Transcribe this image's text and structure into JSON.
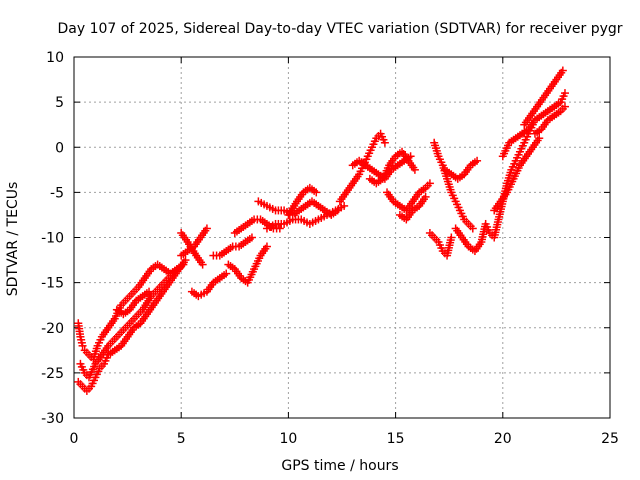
{
  "chart_data": {
    "type": "scatter",
    "title": "Day 107 of 2025, Sidereal Day-to-day VTEC variation (SDTVAR) for receiver pygr",
    "xlabel": "GPS time / hours",
    "ylabel": "SDTVAR / TECUs",
    "xlim": [
      0,
      25
    ],
    "ylim": [
      -30,
      10
    ],
    "xticks": [
      0,
      5,
      10,
      15,
      20,
      25
    ],
    "yticks": [
      -30,
      -25,
      -20,
      -15,
      -10,
      -5,
      0,
      5,
      10
    ],
    "xtick_labels": [
      "0",
      "5",
      "10",
      "15",
      "20",
      "25"
    ],
    "ytick_labels": [
      "-30",
      "-25",
      "-20",
      "-15",
      "-10",
      "-5",
      "0",
      "5",
      "10"
    ],
    "grid": true,
    "marker": "+",
    "color": "#ff0000",
    "series": [
      {
        "points": [
          [
            0.2,
            -19.5
          ],
          [
            0.3,
            -21
          ],
          [
            0.4,
            -22
          ],
          [
            0.5,
            -22.5
          ],
          [
            0.7,
            -23
          ],
          [
            0.9,
            -23.5
          ],
          [
            1.1,
            -22
          ],
          [
            1.3,
            -21
          ],
          [
            1.6,
            -20
          ],
          [
            1.9,
            -19
          ],
          [
            2.2,
            -17.5
          ],
          [
            2.6,
            -16.5
          ],
          [
            3.0,
            -15.5
          ],
          [
            3.3,
            -14.5
          ],
          [
            3.6,
            -13.5
          ],
          [
            3.9,
            -13
          ],
          [
            4.2,
            -13.5
          ],
          [
            4.5,
            -14
          ],
          [
            4.8,
            -13.5
          ],
          [
            5.1,
            -13
          ],
          [
            0.2,
            -26
          ],
          [
            0.4,
            -26.5
          ],
          [
            0.6,
            -27
          ],
          [
            0.8,
            -26.5
          ],
          [
            1.0,
            -25.5
          ],
          [
            1.2,
            -24.5
          ],
          [
            1.4,
            -24
          ],
          [
            1.6,
            -23
          ],
          [
            1.9,
            -22.5
          ],
          [
            2.2,
            -22
          ],
          [
            2.5,
            -21
          ],
          [
            2.8,
            -20
          ],
          [
            3.1,
            -19.5
          ],
          [
            3.4,
            -18.5
          ],
          [
            3.7,
            -17.5
          ],
          [
            4.0,
            -16.5
          ],
          [
            4.3,
            -15.5
          ],
          [
            4.6,
            -14.5
          ],
          [
            4.9,
            -13.5
          ],
          [
            5.2,
            -12.5
          ],
          [
            0.3,
            -24
          ],
          [
            0.5,
            -25
          ],
          [
            0.7,
            -25.5
          ],
          [
            1.0,
            -24
          ],
          [
            1.3,
            -23
          ],
          [
            1.6,
            -22
          ],
          [
            2.0,
            -21
          ],
          [
            2.4,
            -20
          ],
          [
            2.8,
            -19
          ],
          [
            3.2,
            -18
          ],
          [
            3.6,
            -16.5
          ],
          [
            4.0,
            -15.5
          ],
          [
            4.4,
            -14.5
          ],
          [
            4.8,
            -13.5
          ],
          [
            2.0,
            -18
          ],
          [
            2.3,
            -18.5
          ],
          [
            2.6,
            -18
          ],
          [
            2.9,
            -17
          ],
          [
            3.2,
            -16.5
          ],
          [
            3.5,
            -16
          ],
          [
            5.0,
            -12
          ],
          [
            5.3,
            -11.5
          ],
          [
            5.6,
            -11
          ],
          [
            5.9,
            -10
          ],
          [
            6.2,
            -9
          ],
          [
            5.0,
            -9.5
          ],
          [
            5.3,
            -10.5
          ],
          [
            5.7,
            -12
          ],
          [
            6.0,
            -13
          ],
          [
            5.5,
            -16
          ],
          [
            5.8,
            -16.5
          ],
          [
            6.2,
            -16
          ],
          [
            6.5,
            -15
          ],
          [
            6.8,
            -14.5
          ],
          [
            7.1,
            -14
          ],
          [
            6.5,
            -12
          ],
          [
            6.8,
            -12
          ],
          [
            7.1,
            -11.5
          ],
          [
            7.4,
            -11
          ],
          [
            7.7,
            -11
          ],
          [
            8.0,
            -10.5
          ],
          [
            8.3,
            -10
          ],
          [
            7.2,
            -13
          ],
          [
            7.5,
            -13.5
          ],
          [
            7.8,
            -14.5
          ],
          [
            8.1,
            -15
          ],
          [
            8.4,
            -13.5
          ],
          [
            8.7,
            -12
          ],
          [
            9.0,
            -11
          ],
          [
            7.5,
            -9.5
          ],
          [
            7.8,
            -9
          ],
          [
            8.1,
            -8.5
          ],
          [
            8.4,
            -8
          ],
          [
            8.7,
            -8
          ],
          [
            9.0,
            -8.5
          ],
          [
            9.3,
            -9
          ],
          [
            9.6,
            -9
          ],
          [
            8.6,
            -6
          ],
          [
            9.0,
            -6.5
          ],
          [
            9.4,
            -7
          ],
          [
            9.8,
            -7
          ],
          [
            10.2,
            -7.5
          ],
          [
            10.5,
            -7
          ],
          [
            10.8,
            -6.5
          ],
          [
            11.1,
            -6
          ],
          [
            11.4,
            -6.5
          ],
          [
            11.7,
            -7
          ],
          [
            12.0,
            -7.5
          ],
          [
            12.3,
            -7
          ],
          [
            9.0,
            -9
          ],
          [
            9.4,
            -8.5
          ],
          [
            9.8,
            -8.5
          ],
          [
            10.2,
            -8
          ],
          [
            10.6,
            -8
          ],
          [
            11.0,
            -8.5
          ],
          [
            11.4,
            -8
          ],
          [
            11.8,
            -7.5
          ],
          [
            12.2,
            -7
          ],
          [
            12.6,
            -6.5
          ],
          [
            10.0,
            -7.5
          ],
          [
            10.4,
            -6
          ],
          [
            10.7,
            -5
          ],
          [
            11.0,
            -4.5
          ],
          [
            11.3,
            -5
          ],
          [
            12.4,
            -6
          ],
          [
            12.7,
            -5
          ],
          [
            13.0,
            -4
          ],
          [
            13.3,
            -3
          ],
          [
            13.5,
            -2
          ],
          [
            13.7,
            -1
          ],
          [
            13.9,
            0
          ],
          [
            14.1,
            1
          ],
          [
            14.3,
            1.5
          ],
          [
            14.5,
            0.5
          ],
          [
            13.0,
            -2
          ],
          [
            13.3,
            -1.5
          ],
          [
            13.6,
            -2
          ],
          [
            13.9,
            -2.5
          ],
          [
            14.2,
            -3
          ],
          [
            14.5,
            -3.5
          ],
          [
            14.8,
            -2.5
          ],
          [
            15.1,
            -2
          ],
          [
            15.4,
            -1.5
          ],
          [
            15.7,
            -1
          ],
          [
            13.8,
            -3.5
          ],
          [
            14.1,
            -4
          ],
          [
            14.4,
            -3.5
          ],
          [
            14.7,
            -2
          ],
          [
            15.0,
            -1
          ],
          [
            15.3,
            -0.5
          ],
          [
            15.6,
            -1.5
          ],
          [
            15.9,
            -2.5
          ],
          [
            14.6,
            -5
          ],
          [
            14.9,
            -6
          ],
          [
            15.2,
            -6.5
          ],
          [
            15.5,
            -7
          ],
          [
            15.8,
            -6
          ],
          [
            16.1,
            -5
          ],
          [
            16.4,
            -4.5
          ],
          [
            16.6,
            -4
          ],
          [
            15.2,
            -7.5
          ],
          [
            15.5,
            -8
          ],
          [
            15.8,
            -7
          ],
          [
            16.1,
            -6.5
          ],
          [
            16.4,
            -5.5
          ],
          [
            16.6,
            -9.5
          ],
          [
            16.8,
            -10
          ],
          [
            17.0,
            -10.5
          ],
          [
            17.2,
            -11.5
          ],
          [
            17.4,
            -12
          ],
          [
            17.6,
            -10
          ],
          [
            16.8,
            0.5
          ],
          [
            17.0,
            -1
          ],
          [
            17.2,
            -2
          ],
          [
            17.4,
            -3.5
          ],
          [
            17.6,
            -5
          ],
          [
            17.8,
            -6
          ],
          [
            18.0,
            -7
          ],
          [
            18.2,
            -8
          ],
          [
            18.4,
            -8.5
          ],
          [
            18.6,
            -9
          ],
          [
            17.3,
            -2.5
          ],
          [
            17.6,
            -3
          ],
          [
            17.9,
            -3.5
          ],
          [
            18.2,
            -3
          ],
          [
            18.5,
            -2
          ],
          [
            18.8,
            -1.5
          ],
          [
            17.8,
            -9
          ],
          [
            18.1,
            -10
          ],
          [
            18.4,
            -11
          ],
          [
            18.7,
            -11.5
          ],
          [
            19.0,
            -10.5
          ],
          [
            19.2,
            -8.5
          ],
          [
            19.4,
            -9.5
          ],
          [
            19.6,
            -10
          ],
          [
            19.8,
            -8
          ],
          [
            20.0,
            -6
          ],
          [
            20.2,
            -4
          ],
          [
            20.4,
            -2.5
          ],
          [
            20.6,
            -1.5
          ],
          [
            20.8,
            -0.5
          ],
          [
            21.0,
            0.5
          ],
          [
            21.2,
            1.5
          ],
          [
            21.4,
            2.5
          ],
          [
            19.6,
            -7
          ],
          [
            19.9,
            -6
          ],
          [
            20.2,
            -5
          ],
          [
            20.5,
            -3.5
          ],
          [
            20.8,
            -2
          ],
          [
            21.1,
            -1
          ],
          [
            21.4,
            0
          ],
          [
            21.7,
            1
          ],
          [
            20.0,
            -1
          ],
          [
            20.3,
            0.5
          ],
          [
            20.6,
            1
          ],
          [
            20.9,
            1.5
          ],
          [
            21.2,
            2
          ],
          [
            21.5,
            3
          ],
          [
            21.8,
            3.5
          ],
          [
            22.1,
            4
          ],
          [
            22.4,
            4.5
          ],
          [
            22.7,
            5
          ],
          [
            22.9,
            6
          ],
          [
            21.0,
            2.5
          ],
          [
            21.3,
            3.5
          ],
          [
            21.6,
            4.5
          ],
          [
            21.9,
            5.5
          ],
          [
            22.2,
            6.5
          ],
          [
            22.5,
            7.5
          ],
          [
            22.8,
            8.5
          ],
          [
            21.5,
            1.5
          ],
          [
            21.8,
            2
          ],
          [
            22.1,
            3
          ],
          [
            22.4,
            3.5
          ],
          [
            22.7,
            4
          ],
          [
            22.9,
            4.5
          ]
        ]
      }
    ]
  }
}
